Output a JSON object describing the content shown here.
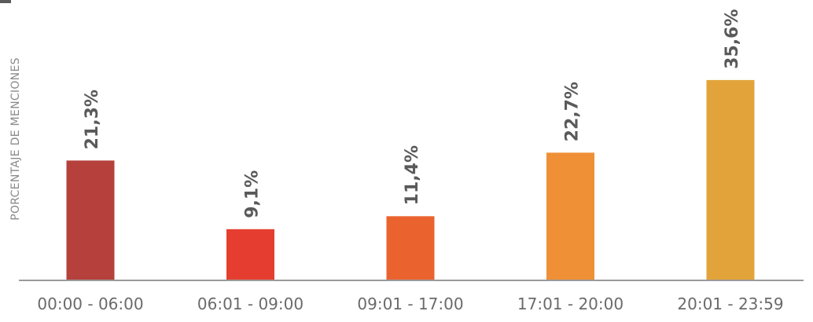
{
  "chart_data": {
    "type": "bar",
    "title": "",
    "xlabel": "",
    "ylabel": "PORCENTAJE DE MENCIONES",
    "categories": [
      "00:00 - 06:00",
      "06:01 - 09:00",
      "09:01 - 17:00",
      "17:01 - 20:00",
      "20:01 - 23:59"
    ],
    "values": [
      21.3,
      9.1,
      11.4,
      22.7,
      35.6
    ],
    "value_labels": [
      "21,3%",
      "9,1%",
      "11,4%",
      "22,7%",
      "35,6%"
    ],
    "colors": [
      "#b5403c",
      "#e53e30",
      "#ea632f",
      "#ef9036",
      "#e2a43a"
    ],
    "axis_color": "#9a9a9a",
    "label_color": "#5a5a5a",
    "ylim": [
      0,
      40
    ],
    "grid": false,
    "legend": "none"
  }
}
